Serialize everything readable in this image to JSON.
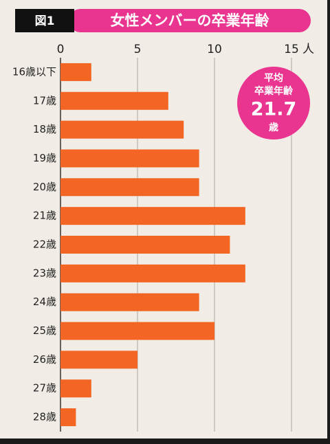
{
  "chart_data": {
    "type": "bar",
    "orientation": "horizontal",
    "figure_label": "図1",
    "title": "女性メンバーの卒業年齢",
    "categories": [
      "16歳以下",
      "17歳",
      "18歳",
      "19歳",
      "20歳",
      "21歳",
      "22歳",
      "23歳",
      "24歳",
      "25歳",
      "26歳",
      "27歳",
      "28歳"
    ],
    "values": [
      2,
      7,
      8,
      9,
      9,
      12,
      11,
      12,
      9,
      10,
      5,
      2,
      1
    ],
    "color": "#f26522",
    "xlim": [
      0,
      15
    ],
    "xticks": [
      0,
      5,
      10,
      15
    ],
    "xlabel": "人",
    "grid": true,
    "annotation": {
      "line1": "平均",
      "line2": "卒業年齢",
      "value": 21.7,
      "unit": "歳"
    }
  }
}
